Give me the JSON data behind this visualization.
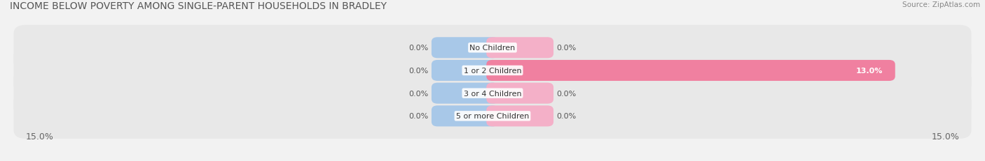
{
  "title": "INCOME BELOW POVERTY AMONG SINGLE-PARENT HOUSEHOLDS IN BRADLEY",
  "source": "Source: ZipAtlas.com",
  "categories": [
    "No Children",
    "1 or 2 Children",
    "3 or 4 Children",
    "5 or more Children"
  ],
  "single_father": [
    0.0,
    0.0,
    0.0,
    0.0
  ],
  "single_mother": [
    0.0,
    13.0,
    0.0,
    0.0
  ],
  "xlim": 15.0,
  "father_color": "#a8c8e8",
  "mother_color": "#f080a0",
  "mother_color_light": "#f4b0c8",
  "bar_height": 0.52,
  "bg_color": "#f2f2f2",
  "row_bg_even": "#ebebeb",
  "row_bg_odd": "#e2e2e2",
  "title_fontsize": 10,
  "label_fontsize": 8,
  "value_fontsize": 8,
  "tick_fontsize": 9,
  "source_fontsize": 7.5,
  "stub_size": 1.8,
  "min_mother_stub": 1.8
}
